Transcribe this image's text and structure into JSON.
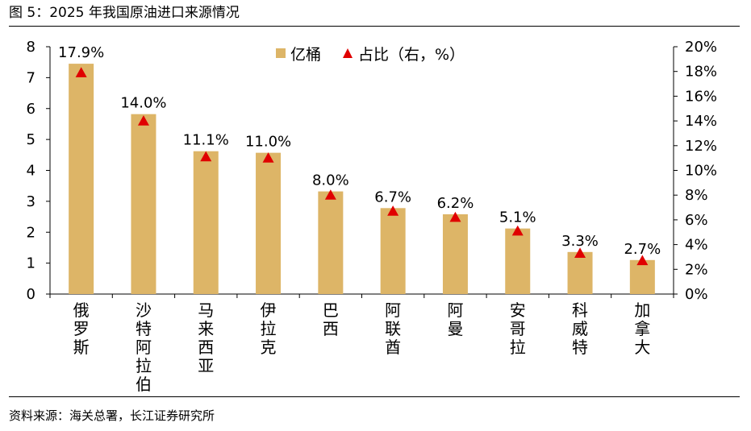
{
  "figure": {
    "title": "图 5：2025 年我国原油进口来源情况",
    "source": "资料来源：海关总署，长江证券研究所"
  },
  "colors": {
    "bar": "#DDB567",
    "marker": "#E00000",
    "axis": "#000000"
  },
  "chart_data": {
    "type": "bar",
    "title": "",
    "categories": [
      "俄罗斯",
      "沙特阿拉伯",
      "马来西亚",
      "伊拉克",
      "巴西",
      "阿联酋",
      "阿曼",
      "安哥拉",
      "科威特",
      "加拿大"
    ],
    "series": [
      {
        "name": "亿桶",
        "type": "bar",
        "axis": "left",
        "values": [
          7.45,
          5.82,
          4.62,
          4.57,
          3.32,
          2.78,
          2.58,
          2.12,
          1.36,
          1.1
        ]
      },
      {
        "name": "占比（右，%）",
        "type": "scatter",
        "marker": "triangle",
        "axis": "right",
        "values": [
          17.9,
          14.0,
          11.1,
          11.0,
          8.0,
          6.7,
          6.2,
          5.1,
          3.3,
          2.7
        ],
        "labels": [
          "17.9%",
          "14.0%",
          "11.1%",
          "11.0%",
          "8.0%",
          "6.7%",
          "6.2%",
          "5.1%",
          "3.3%",
          "2.7%"
        ]
      }
    ],
    "left_axis": {
      "ylim": [
        0,
        8
      ],
      "ticks": [
        "0",
        "1",
        "2",
        "3",
        "4",
        "5",
        "6",
        "7",
        "8"
      ]
    },
    "right_axis": {
      "ylim": [
        0,
        20
      ],
      "ticks": [
        "0%",
        "2%",
        "4%",
        "6%",
        "8%",
        "10%",
        "12%",
        "14%",
        "16%",
        "18%",
        "20%"
      ]
    },
    "legend": {
      "position": "top-center",
      "items": [
        "亿桶",
        "占比（右，%）"
      ]
    },
    "grid": false
  }
}
